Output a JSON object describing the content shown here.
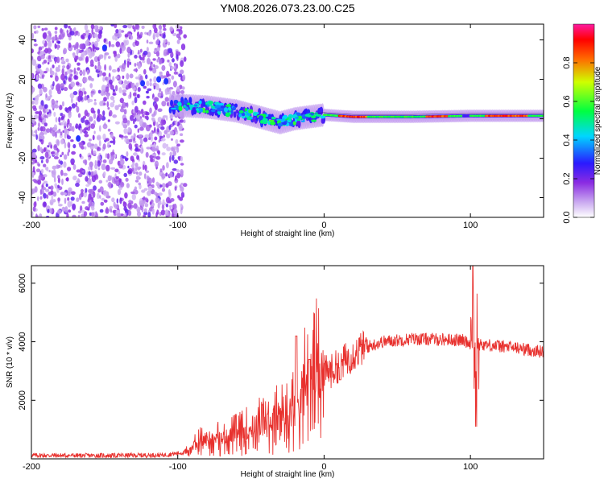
{
  "figure_title": "YM08.2026.073.23.00.C25",
  "chart_data": [
    {
      "type": "heatmap",
      "name": "spectrogram",
      "xlabel": "Height of straight line (km)",
      "ylabel": "Frequency (Hz)",
      "xlim": [
        -200,
        150
      ],
      "ylim": [
        -50,
        48
      ],
      "xticks": [
        -200,
        -100,
        0,
        100
      ],
      "yticks": [
        -40,
        -20,
        0,
        20,
        40
      ],
      "colorbar": {
        "label": "Normalized spectral amplitude",
        "range": [
          0.0,
          1.0
        ],
        "ticks": [
          "0.0",
          "0.2",
          "0.4",
          "0.6",
          "0.8"
        ],
        "colormap": [
          "#ffffff",
          "#8a2be2",
          "#0000ff",
          "#00ffff",
          "#00ff00",
          "#ffff00",
          "#ff0000",
          "#ff00ff"
        ]
      },
      "features": [
        {
          "region": "noise",
          "x_range": [
            -200,
            -95
          ],
          "description_level": "scattered low amplitude"
        },
        {
          "region": "trend",
          "points": [
            [
              -105,
              7
            ],
            [
              -80,
              6
            ],
            [
              -60,
              4
            ],
            [
              -40,
              0
            ],
            [
              -30,
              -2
            ],
            [
              -20,
              0
            ],
            [
              -10,
              1
            ],
            [
              0,
              2
            ],
            [
              20,
              1
            ],
            [
              60,
              1
            ],
            [
              100,
              1.5
            ],
            [
              150,
              1.5
            ]
          ]
        }
      ]
    },
    {
      "type": "line",
      "name": "snr",
      "xlabel": "Height of straight line (km)",
      "ylabel": "SNR (10 * v/v)",
      "xlim": [
        -200,
        150
      ],
      "ylim": [
        0,
        6600
      ],
      "xticks": [
        -200,
        -100,
        0,
        100
      ],
      "yticks": [
        2000,
        4000,
        6000
      ],
      "series": [
        {
          "name": "SNR",
          "color": "#e8312e",
          "envelope": [
            [
              -200,
              120
            ],
            [
              -150,
              110
            ],
            [
              -110,
              130
            ],
            [
              -95,
              220
            ],
            [
              -85,
              600
            ],
            [
              -70,
              700
            ],
            [
              -55,
              900
            ],
            [
              -45,
              1150
            ],
            [
              -35,
              1300
            ],
            [
              -25,
              1500
            ],
            [
              -15,
              2400
            ],
            [
              -5,
              2900
            ],
            [
              5,
              3000
            ],
            [
              15,
              3400
            ],
            [
              25,
              3750
            ],
            [
              40,
              4000
            ],
            [
              60,
              4100
            ],
            [
              80,
              4080
            ],
            [
              95,
              4050
            ],
            [
              100,
              3950
            ],
            [
              110,
              3900
            ],
            [
              130,
              3800
            ],
            [
              150,
              3650
            ]
          ],
          "spikes": [
            [
              -19,
              4200
            ],
            [
              -10,
              3400
            ],
            [
              11,
              2700
            ],
            [
              102,
              6700
            ],
            [
              104,
              1100
            ]
          ]
        }
      ]
    }
  ]
}
